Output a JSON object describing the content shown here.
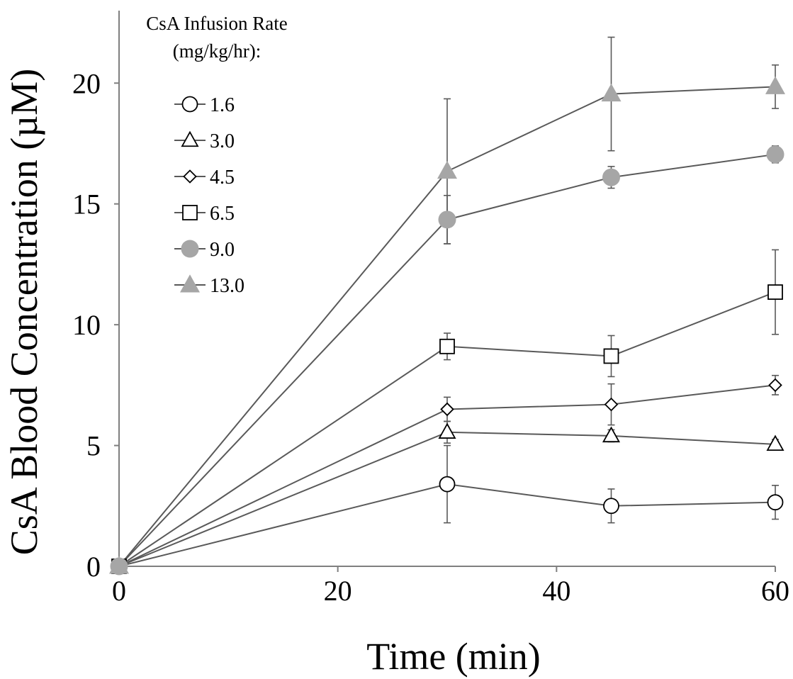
{
  "chart_data": {
    "type": "line",
    "title": "",
    "xlabel": "Time (min)",
    "ylabel": "CsA Blood Concentration (µM)",
    "xlim": [
      0,
      60
    ],
    "ylim": [
      0,
      23
    ],
    "x_ticks": [
      0,
      20,
      40,
      60
    ],
    "y_ticks": [
      0,
      5,
      10,
      15,
      20
    ],
    "grid": false,
    "legend": {
      "title_line1": "CsA Infusion Rate",
      "title_line2": "(mg/kg/hr):",
      "position": "top-left"
    },
    "x": [
      0,
      30,
      45,
      60
    ],
    "series": [
      {
        "name": "1.6",
        "marker": "circle-open",
        "color": "#000000",
        "values": [
          0,
          3.4,
          2.5,
          2.65
        ],
        "errors": [
          0,
          1.6,
          0.7,
          0.7
        ]
      },
      {
        "name": "3.0",
        "marker": "triangle-open",
        "color": "#000000",
        "values": [
          0,
          5.55,
          5.4,
          5.05
        ],
        "errors": [
          0,
          0.45,
          0.25,
          0.2
        ]
      },
      {
        "name": "4.5",
        "marker": "diamond-open",
        "color": "#000000",
        "values": [
          0,
          6.5,
          6.7,
          7.5
        ],
        "errors": [
          0,
          0.5,
          0.85,
          0.4
        ]
      },
      {
        "name": "6.5",
        "marker": "square-open",
        "color": "#000000",
        "values": [
          0,
          9.1,
          8.7,
          11.35
        ],
        "errors": [
          0,
          0.55,
          0.85,
          1.75
        ]
      },
      {
        "name": "9.0",
        "marker": "circle-filled",
        "color": "#a6a6a6",
        "values": [
          0,
          14.35,
          16.1,
          17.05
        ],
        "errors": [
          0,
          1.0,
          0.45,
          0.35
        ]
      },
      {
        "name": "13.0",
        "marker": "triangle-filled",
        "color": "#a6a6a6",
        "values": [
          0,
          16.35,
          19.55,
          19.85
        ],
        "errors": [
          0,
          3.0,
          2.35,
          0.9
        ]
      }
    ],
    "line_color": "#595959"
  }
}
